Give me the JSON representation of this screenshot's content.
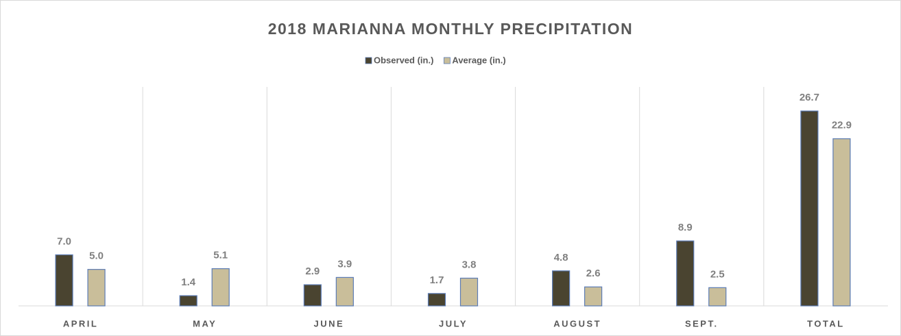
{
  "chart_data": {
    "type": "bar",
    "title": "2018 MARIANNA MONTHLY PRECIPITATION",
    "categories": [
      "APRIL",
      "MAY",
      "JUNE",
      "JULY",
      "AUGUST",
      "SEPT.",
      "TOTAL"
    ],
    "series": [
      {
        "name": "Observed (in.)",
        "color": "#4a4430",
        "values": [
          7.0,
          1.4,
          2.9,
          1.7,
          4.8,
          8.9,
          26.7
        ],
        "value_labels": [
          "7.0",
          "1.4",
          "2.9",
          "1.7",
          "4.8",
          "8.9",
          "26.7"
        ]
      },
      {
        "name": "Average (in.)",
        "color": "#c9be9a",
        "values": [
          5.0,
          5.1,
          3.9,
          3.8,
          2.6,
          2.5,
          22.9
        ],
        "value_labels": [
          "5.0",
          "5.1",
          "3.9",
          "3.8",
          "2.6",
          "2.5",
          "22.9"
        ]
      }
    ],
    "ylim": [
      0,
      30
    ],
    "legend": "top"
  }
}
